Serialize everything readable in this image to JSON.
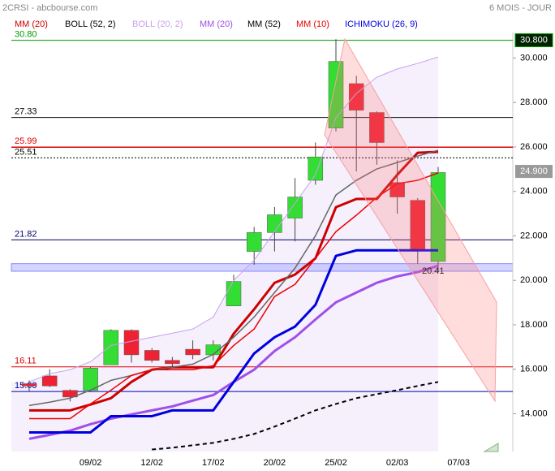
{
  "chart_data": {
    "type": "candlestick",
    "title": "2CRSI - abcbourse.com",
    "subtitle": "6 MOIS - JOUR",
    "categories": [
      null,
      null,
      null,
      "09/02",
      null,
      null,
      "12/02",
      null,
      null,
      "17/02",
      null,
      null,
      "20/02",
      null,
      null,
      "25/02",
      null,
      null,
      "02/03",
      null,
      null,
      "07/03"
    ],
    "open": [
      15.35,
      15.7,
      15.05,
      15.05,
      16.2,
      17.75,
      16.85,
      16.4,
      16.9,
      16.65,
      18.85,
      21.3,
      22.15,
      22.8,
      24.5,
      26.85,
      28.85,
      27.55,
      24.4,
      23.6,
      20.85,
      null
    ],
    "high": [
      15.5,
      16.0,
      15.1,
      16.1,
      17.8,
      17.8,
      16.95,
      16.55,
      17.3,
      17.3,
      20.25,
      22.4,
      23.3,
      24.6,
      26.2,
      30.85,
      29.2,
      27.6,
      25.4,
      23.7,
      25.1,
      null
    ],
    "low": [
      15.0,
      15.2,
      14.55,
      15.0,
      16.2,
      16.3,
      16.3,
      16.1,
      16.45,
      16.4,
      18.85,
      20.7,
      21.3,
      21.75,
      24.3,
      26.7,
      24.9,
      25.2,
      23.0,
      20.75,
      20.41,
      null
    ],
    "close": [
      15.25,
      15.25,
      14.75,
      16.05,
      17.75,
      16.65,
      16.4,
      16.25,
      16.65,
      17.1,
      19.95,
      22.15,
      22.95,
      23.75,
      25.55,
      29.85,
      27.65,
      26.2,
      23.75,
      21.35,
      24.85,
      null
    ],
    "up_color": "#33dd33",
    "down_color": "#ee2233",
    "series": [
      {
        "name": "MM (20)",
        "color": "#cc0000",
        "width": 3,
        "values": [
          14.15,
          14.15,
          14.15,
          14.41,
          14.7,
          15.43,
          15.98,
          16.09,
          16.09,
          16.09,
          17.6,
          18.7,
          19.89,
          20.26,
          20.99,
          23.29,
          23.66,
          23.66,
          24.75,
          25.74,
          25.78,
          null
        ]
      },
      {
        "name": "BOLL (52, 2)",
        "color": "#000000",
        "width": 2,
        "dash": true,
        "values": [
          null,
          null,
          null,
          null,
          null,
          null,
          12.39,
          12.47,
          12.58,
          12.69,
          12.87,
          13.09,
          13.42,
          13.78,
          14.15,
          14.44,
          14.7,
          14.88,
          15.06,
          15.25,
          15.43,
          null
        ]
      },
      {
        "name": "BOLL (20, 2)",
        "color": "#c9a0ee",
        "width": 1,
        "values": [
          15.43,
          15.8,
          15.98,
          16.34,
          17.07,
          17.26,
          17.44,
          17.62,
          17.81,
          18.35,
          20.0,
          20.91,
          22.19,
          23.47,
          24.75,
          27.31,
          28.41,
          29.14,
          29.51,
          29.76,
          30.05,
          null
        ]
      },
      {
        "name": "MM (20)",
        "color": "#a050e8",
        "width": 3,
        "values": [
          12.87,
          13.05,
          13.24,
          13.53,
          13.78,
          13.97,
          14.15,
          14.33,
          14.59,
          14.84,
          15.43,
          15.98,
          16.82,
          17.44,
          18.24,
          19.01,
          19.45,
          19.89,
          20.18,
          20.37,
          20.66,
          null
        ]
      },
      {
        "name": "MM (52)",
        "color": "#666666",
        "width": 1.5,
        "values": [
          14.37,
          14.52,
          14.7,
          15.06,
          15.5,
          15.72,
          15.98,
          16.09,
          16.23,
          16.67,
          17.44,
          18.35,
          19.45,
          20.55,
          22.01,
          23.84,
          24.5,
          25.01,
          25.3,
          25.59,
          25.85,
          null
        ]
      },
      {
        "name": "MM (10)",
        "color": "#ee0000",
        "width": 1.5,
        "values": [
          13.78,
          13.78,
          13.78,
          14.44,
          15.06,
          15.72,
          15.98,
          15.98,
          15.98,
          16.16,
          17.07,
          17.81,
          19.27,
          19.82,
          20.99,
          22.19,
          22.93,
          23.73,
          24.35,
          24.5,
          24.83,
          null
        ]
      },
      {
        "name": "ICHIMOKU (26, 9)",
        "color": "#0000dd",
        "width": 3,
        "values": [
          13.16,
          13.16,
          13.16,
          13.16,
          13.89,
          13.89,
          13.89,
          14.15,
          14.15,
          14.15,
          15.43,
          16.71,
          17.44,
          17.92,
          18.9,
          21.1,
          21.35,
          21.35,
          21.35,
          21.35,
          21.35,
          null
        ]
      }
    ],
    "levels": [
      {
        "value": 30.8,
        "label": "30.80",
        "color": "#009900",
        "right_label": "30.800"
      },
      {
        "value": 27.33,
        "label": "27.33",
        "color": "#000000"
      },
      {
        "value": 25.99,
        "label": "25.99",
        "color": "#dd0000"
      },
      {
        "value": 25.51,
        "label": "25.51",
        "color": "#000000",
        "dotted": true
      },
      {
        "value": 21.82,
        "label": "21.82",
        "color": "#000066"
      },
      {
        "value": 16.11,
        "label": "16.11",
        "color": "#dd0000"
      },
      {
        "value": 15,
        "label": "15.00",
        "color": "#0000aa"
      }
    ],
    "band": {
      "from": 20.41,
      "to": 20.75,
      "label": "20.41",
      "color": "#8888ff"
    },
    "last_price": {
      "value": 24.9,
      "label": "24.900"
    },
    "ylim": [
      12.3,
      31.15
    ],
    "yticks": [
      {
        "value": 14,
        "label": "14.000"
      },
      {
        "value": 16,
        "label": "16.000"
      },
      {
        "value": 18,
        "label": "18.000"
      },
      {
        "value": 20,
        "label": "20.000"
      },
      {
        "value": 22,
        "label": "22.000"
      },
      {
        "value": 24,
        "label": "24.000"
      },
      {
        "value": 26,
        "label": "26.000"
      },
      {
        "value": 28,
        "label": "28.000"
      },
      {
        "value": 30,
        "label": "30.000"
      }
    ]
  }
}
